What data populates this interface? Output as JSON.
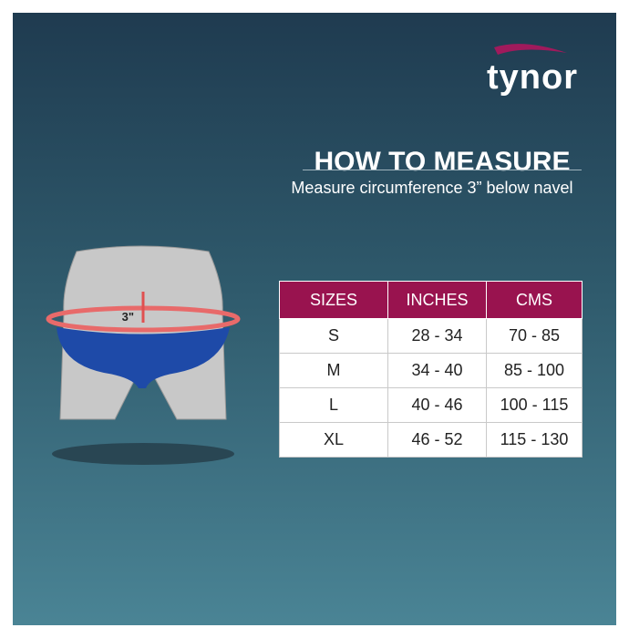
{
  "brand": "tynor",
  "header": {
    "title": "HOW TO MEASURE",
    "subtitle": "Measure circumference 3” below navel"
  },
  "illustration": {
    "label": "3\""
  },
  "table": {
    "columns": [
      "SIZES",
      "INCHES",
      "CMS"
    ],
    "rows": [
      [
        "S",
        "28 - 34",
        "70 - 85"
      ],
      [
        "M",
        "34 - 40",
        "85 - 100"
      ],
      [
        "L",
        "40 - 46",
        "100 - 115"
      ],
      [
        "XL",
        "46 - 52",
        "115 - 130"
      ]
    ]
  }
}
